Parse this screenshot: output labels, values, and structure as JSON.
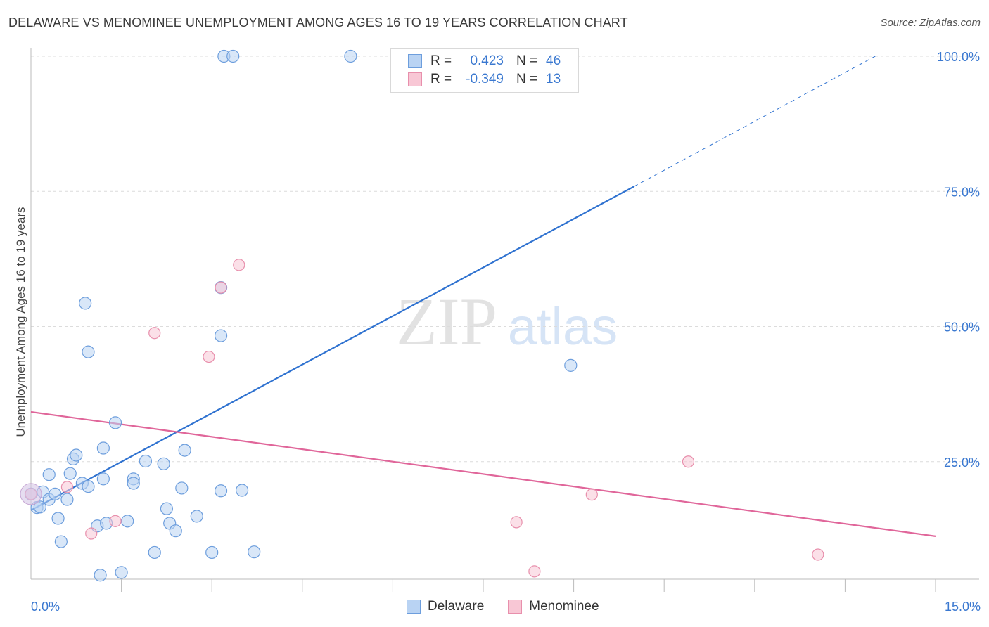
{
  "title": "DELAWARE VS MENOMINEE UNEMPLOYMENT AMONG AGES 16 TO 19 YEARS CORRELATION CHART",
  "source": "Source: ZipAtlas.com",
  "watermark": {
    "zip": "ZIP",
    "atlas": "atlas"
  },
  "legend": {
    "rows": [
      {
        "r_label": "R =",
        "r_value": "0.423",
        "n_label": "N =",
        "n_value": "46"
      },
      {
        "r_label": "R =",
        "r_value": "-0.349",
        "n_label": "N =",
        "n_value": "13"
      }
    ]
  },
  "bottom_legend": {
    "series1": "Delaware",
    "series2": "Menominee"
  },
  "colors": {
    "delaware_fill": "#b9d3f3",
    "delaware_stroke": "#6d9edd",
    "delaware_line": "#2f72d0",
    "menominee_fill": "#f8c7d5",
    "menominee_stroke": "#e88fac",
    "menominee_line": "#e0669a",
    "tick_label": "#3a78d0",
    "grid": "#dcdcdc"
  },
  "chart_data": {
    "type": "scatter",
    "title": "DELAWARE VS MENOMINEE UNEMPLOYMENT AMONG AGES 16 TO 19 YEARS CORRELATION CHART",
    "xlabel": "",
    "ylabel": "Unemployment Among Ages 16 to 19 years",
    "xlim": [
      0,
      15
    ],
    "ylim": [
      0,
      100
    ],
    "x_tick_labels": [
      "0.0%",
      "15.0%"
    ],
    "y_ticks": [
      25,
      50,
      75,
      100
    ],
    "y_tick_labels": [
      "25.0%",
      "50.0%",
      "75.0%",
      "100.0%"
    ],
    "grid": "horizontal dashed",
    "legend_position": "top-center",
    "series": [
      {
        "name": "Delaware",
        "r": 0.423,
        "n": 46,
        "points": [
          [
            0.0,
            19.0
          ],
          [
            0.1,
            16.5
          ],
          [
            0.15,
            16.6
          ],
          [
            0.2,
            19.4
          ],
          [
            0.3,
            22.6
          ],
          [
            0.3,
            18.0
          ],
          [
            0.4,
            19.0
          ],
          [
            0.45,
            14.5
          ],
          [
            0.5,
            10.2
          ],
          [
            0.6,
            18.0
          ],
          [
            0.65,
            22.8
          ],
          [
            0.7,
            25.5
          ],
          [
            0.75,
            26.2
          ],
          [
            0.85,
            21.0
          ],
          [
            0.9,
            54.3
          ],
          [
            0.95,
            20.4
          ],
          [
            0.95,
            45.3
          ],
          [
            1.1,
            13.1
          ],
          [
            1.15,
            4.0
          ],
          [
            1.2,
            21.8
          ],
          [
            1.2,
            27.5
          ],
          [
            1.25,
            13.6
          ],
          [
            1.4,
            32.2
          ],
          [
            1.5,
            4.5
          ],
          [
            1.6,
            14.0
          ],
          [
            1.7,
            21.8
          ],
          [
            1.7,
            21.0
          ],
          [
            1.9,
            25.1
          ],
          [
            2.05,
            8.2
          ],
          [
            2.2,
            24.6
          ],
          [
            2.25,
            16.3
          ],
          [
            2.3,
            13.6
          ],
          [
            2.4,
            12.2
          ],
          [
            2.5,
            20.1
          ],
          [
            2.55,
            27.1
          ],
          [
            2.75,
            14.9
          ],
          [
            3.0,
            8.2
          ],
          [
            3.15,
            19.6
          ],
          [
            3.15,
            48.3
          ],
          [
            3.15,
            57.2
          ],
          [
            3.2,
            100
          ],
          [
            3.35,
            100
          ],
          [
            3.5,
            19.7
          ],
          [
            3.7,
            8.3
          ],
          [
            5.3,
            100
          ],
          [
            8.95,
            42.8
          ]
        ],
        "trend_line": {
          "x": [
            0.0,
            10.0
          ],
          "y": [
            16.0,
            75.9
          ],
          "dashed_extension": {
            "x": [
              10.0,
              14.0
            ],
            "y": [
              75.9,
              100.0
            ]
          }
        }
      },
      {
        "name": "Menominee",
        "r": -0.349,
        "n": 13,
        "points": [
          [
            0.0,
            19.0
          ],
          [
            0.6,
            20.3
          ],
          [
            1.0,
            11.7
          ],
          [
            1.4,
            14.0
          ],
          [
            2.05,
            48.8
          ],
          [
            2.95,
            44.4
          ],
          [
            3.15,
            57.2
          ],
          [
            3.45,
            61.4
          ],
          [
            8.05,
            13.8
          ],
          [
            8.35,
            4.7
          ],
          [
            9.3,
            18.9
          ],
          [
            10.9,
            25.0
          ],
          [
            13.05,
            7.8
          ]
        ],
        "trend_line": {
          "x": [
            0.0,
            15.0
          ],
          "y": [
            34.2,
            11.2
          ]
        }
      }
    ]
  }
}
